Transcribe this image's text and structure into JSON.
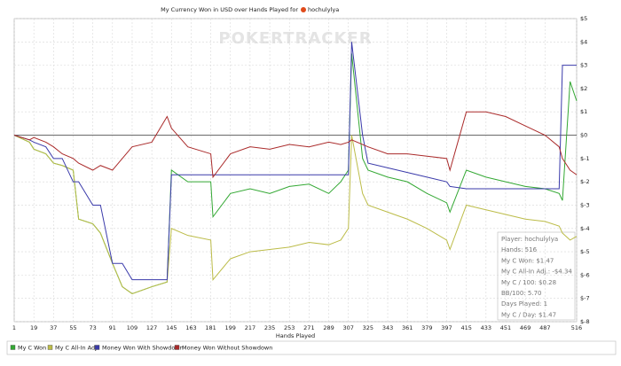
{
  "chart_data": {
    "type": "line",
    "title": "My Currency Won in USD over Hands Played for",
    "player": "hochulylya",
    "watermark": "POKERTRACKER",
    "x_label": "Hands Played",
    "x": [
      1,
      15,
      19,
      30,
      37,
      45,
      55,
      60,
      73,
      80,
      91,
      100,
      109,
      127,
      141,
      145,
      160,
      181,
      183,
      199,
      217,
      235,
      253,
      271,
      289,
      300,
      307,
      310,
      320,
      325,
      343,
      361,
      379,
      397,
      400,
      415,
      433,
      451,
      469,
      487,
      500,
      503,
      510,
      516
    ],
    "series": [
      {
        "name": "My C Won",
        "color": "#33a833",
        "values": [
          0,
          -0.3,
          -0.6,
          -0.8,
          -1.2,
          -1.3,
          -1.5,
          -3.6,
          -3.8,
          -4.2,
          -5.5,
          -6.5,
          -6.8,
          -6.5,
          -6.3,
          -1.5,
          -2,
          -2,
          -3.5,
          -2.5,
          -2.3,
          -2.5,
          -2.2,
          -2.1,
          -2.5,
          -2,
          -1.5,
          3.5,
          -1,
          -1.5,
          -1.8,
          -2,
          -2.5,
          -2.9,
          -3.3,
          -1.5,
          -1.8,
          -2,
          -2.2,
          -2.3,
          -2.5,
          -2.8,
          2.3,
          1.47
        ]
      },
      {
        "name": "My C All-In Adj",
        "color": "#bcbc48",
        "values": [
          0,
          -0.3,
          -0.6,
          -0.8,
          -1.2,
          -1.3,
          -1.5,
          -3.6,
          -3.8,
          -4.2,
          -5.5,
          -6.5,
          -6.8,
          -6.5,
          -6.3,
          -4,
          -4.3,
          -4.5,
          -6.2,
          -5.3,
          -5,
          -4.9,
          -4.8,
          -4.6,
          -4.7,
          -4.5,
          -4,
          0,
          -2.5,
          -3,
          -3.3,
          -3.6,
          -4,
          -4.5,
          -4.9,
          -3,
          -3.2,
          -3.4,
          -3.6,
          -3.7,
          -3.9,
          -4.2,
          -4.5,
          -4.34
        ]
      },
      {
        "name": "Money Won With Showdown",
        "color": "#3a3aaa",
        "values": [
          0,
          -0.2,
          -0.3,
          -0.5,
          -1,
          -1,
          -2,
          -2,
          -3,
          -3,
          -5.5,
          -5.5,
          -6.2,
          -6.2,
          -6.2,
          -1.7,
          -1.7,
          -1.7,
          -1.7,
          -1.7,
          -1.7,
          -1.7,
          -1.7,
          -1.7,
          -1.7,
          -1.7,
          -1.7,
          4,
          0,
          -1.2,
          -1.4,
          -1.6,
          -1.8,
          -2,
          -2.2,
          -2.3,
          -2.3,
          -2.3,
          -2.3,
          -2.3,
          -2.3,
          3,
          3,
          3
        ]
      },
      {
        "name": "Money Won Without Showdown",
        "color": "#aa2a2a",
        "values": [
          0,
          -0.2,
          -0.1,
          -0.3,
          -0.5,
          -0.8,
          -1,
          -1.2,
          -1.5,
          -1.3,
          -1.5,
          -1,
          -0.5,
          -0.3,
          0.8,
          0.3,
          -0.5,
          -0.8,
          -1.8,
          -0.8,
          -0.5,
          -0.6,
          -0.4,
          -0.5,
          -0.3,
          -0.4,
          -0.3,
          -0.2,
          -0.4,
          -0.5,
          -0.8,
          -0.8,
          -0.9,
          -1,
          -1.5,
          1,
          1,
          0.8,
          0.4,
          0,
          -0.5,
          -1,
          -1.5,
          -1.7
        ]
      }
    ],
    "xlim": [
      1,
      516
    ],
    "xticks": [
      1,
      19,
      37,
      55,
      73,
      91,
      109,
      127,
      145,
      163,
      181,
      199,
      217,
      235,
      253,
      271,
      289,
      307,
      325,
      343,
      361,
      379,
      397,
      415,
      433,
      451,
      469,
      487,
      516
    ],
    "ylim": [
      -8,
      5
    ],
    "yticks": [
      {
        "value": 5,
        "label": "$5"
      },
      {
        "value": 4,
        "label": "$4"
      },
      {
        "value": 3,
        "label": "$3"
      },
      {
        "value": 2,
        "label": "$2"
      },
      {
        "value": 1,
        "label": "$1"
      },
      {
        "value": 0,
        "label": "$0"
      },
      {
        "value": -1,
        "label": "$-1"
      },
      {
        "value": -2,
        "label": "$-2"
      },
      {
        "value": -3,
        "label": "$-3"
      },
      {
        "value": -4,
        "label": "$-4"
      },
      {
        "value": -5,
        "label": "$-5"
      },
      {
        "value": -6,
        "label": "$-6"
      },
      {
        "value": -7,
        "label": "$-7"
      },
      {
        "value": -8,
        "label": "$-8"
      }
    ],
    "grid": true,
    "legend": "bottom-left",
    "annotations": [
      "Player: hochulylya",
      "Hands: 516",
      "My C Won: $1.47",
      "My C All-In Adj.: -$4.34",
      "My C / 100: $0.28",
      "BB/100: 5.70",
      "Days Played: 1",
      "My C / Day: $1.47"
    ]
  }
}
